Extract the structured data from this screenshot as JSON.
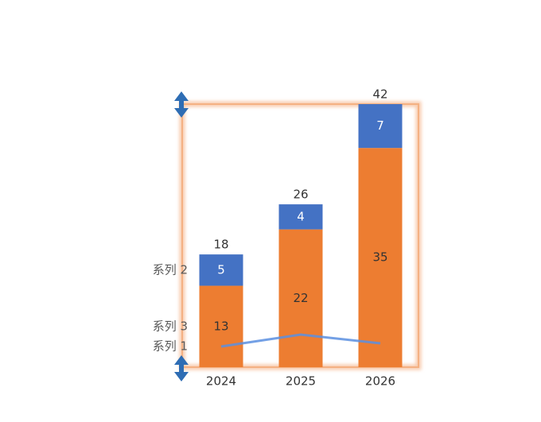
{
  "chart_data": {
    "type": "bar",
    "stacked": true,
    "categories": [
      "2024",
      "2025",
      "2026"
    ],
    "series": [
      {
        "name": "系列 3",
        "color": "#ed7d31",
        "values": [
          13,
          22,
          35
        ]
      },
      {
        "name": "系列 2",
        "color": "#4472c4",
        "values": [
          5,
          4,
          7
        ]
      },
      {
        "name": "系列 1",
        "type": "line",
        "color": "#5b8fe0",
        "values": [
          3.3,
          5.2,
          3.8
        ]
      }
    ],
    "totals": [
      18,
      26,
      42
    ],
    "ylim": [
      0,
      42
    ]
  }
}
